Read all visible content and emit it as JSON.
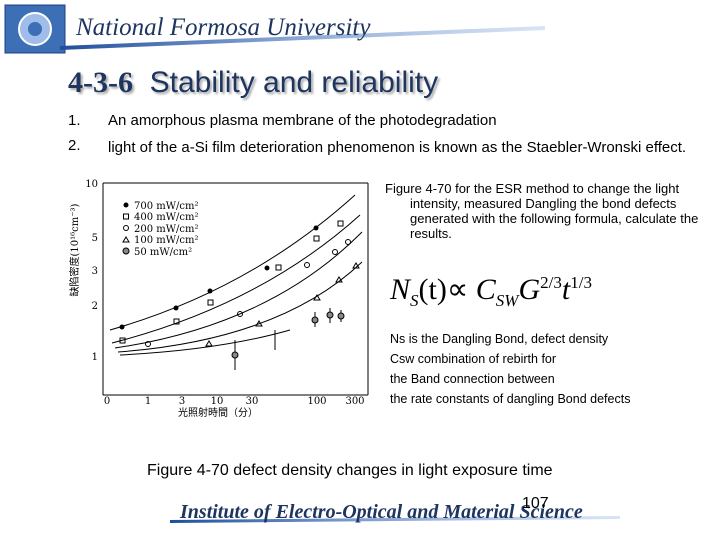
{
  "header": {
    "university": "National Formosa University"
  },
  "title": {
    "number": "4-3-6",
    "text": "Stability and reliability"
  },
  "list": [
    {
      "marker": "1.",
      "text": "An amorphous plasma membrane of the photodegradation"
    },
    {
      "marker": "2.",
      "text": "light of the a-Si film deterioration phenomenon is known as the Staebler-Wronski effect."
    }
  ],
  "figure": {
    "y_axis_label": "缺陷密度(10¹⁶cm⁻³)",
    "x_axis_label": "光照射時間（分）",
    "y_tick_labels": [
      "10",
      "5",
      "3",
      "2",
      "1"
    ],
    "x_tick_labels": [
      "0",
      "1",
      "3",
      "10",
      "30",
      "100",
      "300"
    ],
    "legend": [
      "700 mW/cm²",
      "400 mW/cm²",
      "200 mW/cm²",
      "100 mW/cm²",
      "50 mW/cm²"
    ]
  },
  "figure_description": "Figure 4-70 for the ESR method to change the light intensity, measured Dangling the bond defects generated with the following formula, calculate the results.",
  "formula": {
    "n": "N",
    "n_sub": "S",
    "arg": "(t)",
    "prop": "∝",
    "c": "C",
    "c_sub": "SW",
    "g": "G",
    "g_exp": "2/3",
    "t": "t",
    "t_exp": "1/3"
  },
  "notes": [
    "Ns is the Dangling Bond, defect density",
    "Csw combination of rebirth for",
    "the Band connection between",
    "the rate constants of dangling Bond defects"
  ],
  "caption": "Figure 4-70 defect density changes in light exposure time",
  "footer": {
    "institute": "Institute of Electro-Optical and Material Science",
    "page_number": "107"
  }
}
